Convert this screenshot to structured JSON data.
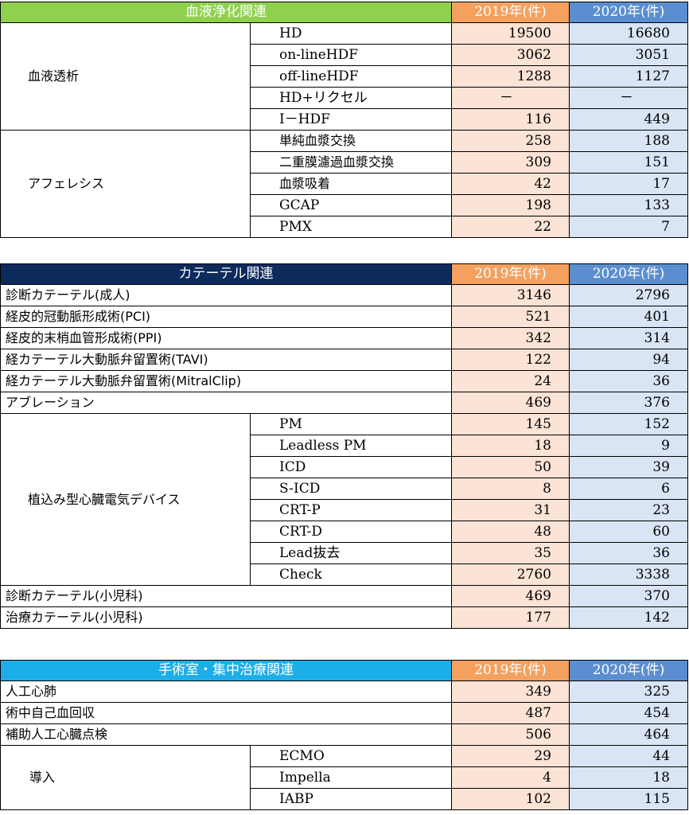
{
  "colors": {
    "section1_header": "#8fd14f",
    "section2_header": "#0c2a5c",
    "section3_header": "#1caee8",
    "year2019_header": "#f4a15f",
    "year2020_header": "#5b8ed0",
    "year2019_cell": "#fbe3d5",
    "year2020_cell": "#d9e4f4"
  },
  "section1": {
    "title": "血液浄化関連",
    "col_2019": "2019年(件)",
    "col_2020": "2020年(件)",
    "group1": {
      "label": "血液透析",
      "rows": [
        {
          "name": "HD",
          "v2019": "19500",
          "v2020": "16680"
        },
        {
          "name": "on-lineHDF",
          "v2019": "3062",
          "v2020": "3051"
        },
        {
          "name": "off-lineHDF",
          "v2019": "1288",
          "v2020": "1127"
        },
        {
          "name": "HD+リクセル",
          "v2019": "－",
          "v2020": "－"
        },
        {
          "name": "I－HDF",
          "v2019": "116",
          "v2020": "449"
        }
      ]
    },
    "group2": {
      "label": "アフェレシス",
      "rows": [
        {
          "name": "単純血漿交換",
          "v2019": "258",
          "v2020": "188"
        },
        {
          "name": "二重膜濾過血漿交換",
          "v2019": "309",
          "v2020": "151"
        },
        {
          "name": "血漿吸着",
          "v2019": "42",
          "v2020": "17"
        },
        {
          "name": "GCAP",
          "v2019": "198",
          "v2020": "133"
        },
        {
          "name": "PMX",
          "v2019": "22",
          "v2020": "7"
        }
      ]
    }
  },
  "section2": {
    "title": "カテーテル関連",
    "col_2019": "2019年(件)",
    "col_2020": "2020年(件)",
    "top_rows": [
      {
        "name": "診断カテーテル(成人)",
        "v2019": "3146",
        "v2020": "2796"
      },
      {
        "name": "経皮的冠動脈形成術(PCI)",
        "v2019": "521",
        "v2020": "401"
      },
      {
        "name": "経皮的末梢血管形成術(PPI)",
        "v2019": "342",
        "v2020": "314"
      },
      {
        "name": "経カテーテル大動脈弁留置術(TAVI)",
        "v2019": "122",
        "v2020": "94"
      },
      {
        "name": "経カテーテル大動脈弁留置術(MitralClip)",
        "v2019": "24",
        "v2020": "36"
      },
      {
        "name": "アブレーション",
        "v2019": "469",
        "v2020": "376"
      }
    ],
    "device_group": {
      "label": "植込み型心臓電気デバイス",
      "rows": [
        {
          "name": "PM",
          "v2019": "145",
          "v2020": "152"
        },
        {
          "name": "Leadless PM",
          "v2019": "18",
          "v2020": "9"
        },
        {
          "name": "ICD",
          "v2019": "50",
          "v2020": "39"
        },
        {
          "name": "S-ICD",
          "v2019": "8",
          "v2020": "6"
        },
        {
          "name": "CRT-P",
          "v2019": "31",
          "v2020": "23"
        },
        {
          "name": "CRT-D",
          "v2019": "48",
          "v2020": "60"
        },
        {
          "name": "Lead抜去",
          "v2019": "35",
          "v2020": "36"
        },
        {
          "name": "Check",
          "v2019": "2760",
          "v2020": "3338"
        }
      ]
    },
    "bottom_rows": [
      {
        "name": "診断カテーテル(小児科)",
        "v2019": "469",
        "v2020": "370"
      },
      {
        "name": "治療カテーテル(小児科)",
        "v2019": "177",
        "v2020": "142"
      }
    ]
  },
  "section3": {
    "title": "手術室・集中治療関連",
    "col_2019": "2019年(件)",
    "col_2020": "2020年(件)",
    "top_rows": [
      {
        "name": "人工心肺",
        "v2019": "349",
        "v2020": "325"
      },
      {
        "name": "術中自己血回収",
        "v2019": "487",
        "v2020": "454"
      },
      {
        "name": "補助人工心臓点検",
        "v2019": "506",
        "v2020": "464"
      }
    ],
    "intro_group": {
      "label": "導入",
      "rows": [
        {
          "name": "ECMO",
          "v2019": "29",
          "v2020": "44"
        },
        {
          "name": "Impella",
          "v2019": "4",
          "v2020": "18"
        },
        {
          "name": "IABP",
          "v2019": "102",
          "v2020": "115"
        }
      ]
    }
  }
}
